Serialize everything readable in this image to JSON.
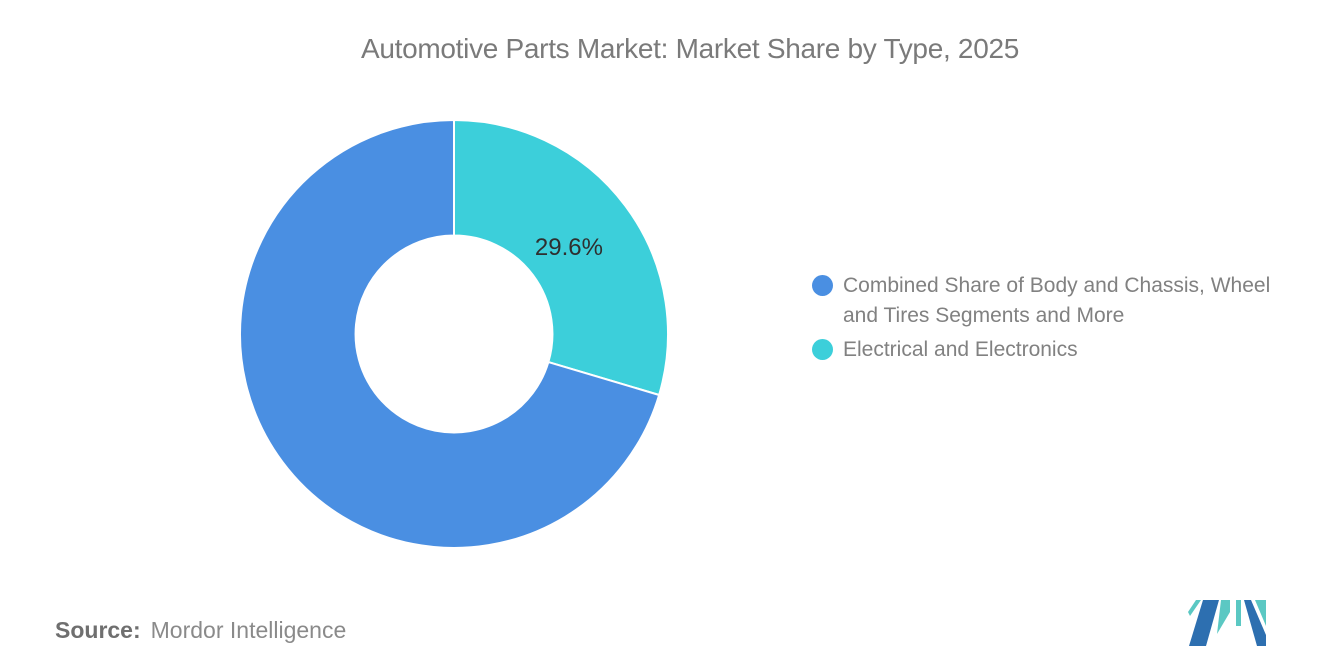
{
  "header": {
    "title": "Automotive Parts Market: Market Share by Type, 2025"
  },
  "chart_data": {
    "type": "pie",
    "subtype": "donut",
    "title": "Automotive Parts Market: Market Share by Type, 2025",
    "unit": "%",
    "segments": [
      {
        "label": "Combined Share of Body and Chassis, Wheel and Tires Segments and More",
        "value": 70.4,
        "color": "#4A8FE2",
        "data_label": ""
      },
      {
        "label": "Electrical and Electronics",
        "value": 29.6,
        "color": "#3CCFDA",
        "data_label": "29.6%"
      }
    ],
    "draw_order": [
      1,
      0
    ],
    "start_angle_deg": 0,
    "direction": "clockwise",
    "donut_hole_ratio": 0.46,
    "data_label_color": "#2f2f2f",
    "legend_position": "right",
    "grid": false
  },
  "legend": {
    "items": [
      {
        "text": "Combined Share of Body and Chassis, Wheel\nand Tires Segments and More"
      },
      {
        "text": "Electrical and Electronics"
      }
    ]
  },
  "footer": {
    "source_label": "Source:",
    "source_value": "Mordor Intelligence"
  },
  "logo": {
    "name": "mordor-intelligence-logo",
    "blue": "#2D6FB0",
    "teal": "#5BC8C3"
  }
}
